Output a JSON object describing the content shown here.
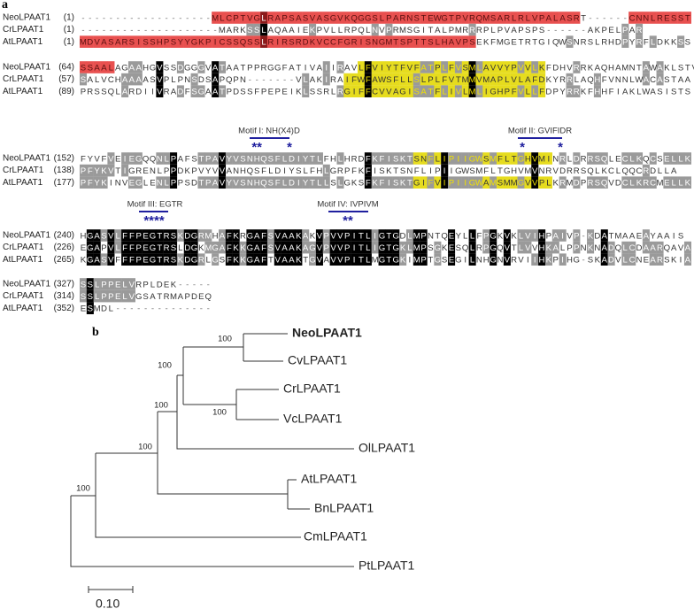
{
  "panel_a": {
    "label": "a",
    "blocks": [
      {
        "rows": [
          {
            "name": "NeoLPAAT1",
            "start": "(1)",
            "sequence": "-------------------MLCPTVGLRAPSASVASGVKQGGSLPARNSTEWGTPVRQMSARLRLVPALASRT------CNNLRESST"
          },
          {
            "name": "CrLPAAT1",
            "start": "(1)",
            "sequence": "--------------------MARKSSLAQAAIEKPVLLRPQLNVPRMSGITALPMRRRPLPVAPSPS------AKPELPAR"
          },
          {
            "name": "AtLPAAT1",
            "start": "(1)",
            "sequence": "MDVASARSISSHPSYYGKPICSSQSSLRIRSRDKVCCFGRISNGMTSPTTSLHAVPSEKFMGETRTGIQWSNRSLRHDPYRFLDKKSS"
          }
        ]
      },
      {
        "rows": [
          {
            "name": "NeoLPAAT1",
            "start": "(64)",
            "sequence": "SSAALAGAAHGVSSDGGGVATAATPPRGGFATIVAIIRAVLFVIYTFVFATPLFVSMLAVVYPVVLKFDHVRRKAQHAMNTAWAKLSTV"
          },
          {
            "name": "CrLPAAT1",
            "start": "(57)",
            "sequence": "SALVCHAAAASVPLPNSDSAPQPN-------VLAKIRAIFWFAWSFLLSLPLFVTMMVMAPLVLAFDKYRRLAQHFVNNLWACASTAA"
          },
          {
            "name": "AtLPAAT1",
            "start": "(89)",
            "sequence": "PRSSQLARDIIVRADFSGAATPDSSFPEPEIKLSSRLRGIFFCVVAGISATFLIVLMLIGHPFVLLFDPYRRKFHHFIAKLWASISTS"
          }
        ]
      },
      {
        "rows": [
          {
            "name": "NeoLPAAT1",
            "start": "(152)",
            "sequence": "FYVFVEIEGQQNLPAFSTPAVYVSNHQSFLDIYTLFHLHRDFKFISKTSNFLIPIIGWSMFLTGHVMINRLDRRSQLECLKQCSELLK"
          },
          {
            "name": "CrLPAAT1",
            "start": "(138)",
            "sequence": "PFYKVTIGRENLPPDKPVYVVANHQSFLDIYSLFHLGRPFKFISKTSNFLIPIIGWSMFLTGHVMVNRVDRRSQLKCLQQCRDLLA"
          },
          {
            "name": "AtLPAAT1",
            "start": "(177)",
            "sequence": "PFYKINVEGLENLPPSDTPAVYVSNHQSFLDIYTLLSLGKSFKFISKTGIFVIPIIGWAMSMMGVVPLKRMDPRSQVDCLKRCMELLK"
          }
        ]
      },
      {
        "rows": [
          {
            "name": "NeoLPAAT1",
            "start": "(240)",
            "sequence": "HGASVLFFPEGTRSKDGRMHAFKRGAFSVAAKAKVPVVPITLIGTGDLMPNTQEYLLFPGKVKLVIHPAIVP-KDATMAAEAYAAIS"
          },
          {
            "name": "CrLPAAT1",
            "start": "(226)",
            "sequence": "EGAPVLFFPEGTRSLDGKMGAFKKGAFSVAAKAGVPVVPITLIGTGKLMPSGKESQLRPGQVTLVVHKALPPNKNADQLCDAARQAVA"
          },
          {
            "name": "AtLPAAT1",
            "start": "(265)",
            "sequence": "KGASVFFFPEGTRSKDGRLGSFKKGAFTVAAKTGVAVVPITLMGTGKIMPTGSEGILNHGNVRVIIHKPIHG-SKADVLCNEARSKIA"
          }
        ]
      },
      {
        "rows": [
          {
            "name": "NeoLPAAT1",
            "start": "(327)",
            "sequence": "SSLPPELVRPLDEK-----"
          },
          {
            "name": "CrLPAAT1",
            "start": "(314)",
            "sequence": "SSLPPELVGSATRMAPDEQ"
          },
          {
            "name": "AtLPAAT1",
            "start": "(352)",
            "sequence": "ESMDL--------------"
          }
        ]
      }
    ],
    "motifs": [
      {
        "label": "Motif I: NH(X4)D",
        "stars": [
          "**",
          "*"
        ]
      },
      {
        "label": "Motif II: GVIFIDR",
        "stars": [
          "*",
          "*"
        ]
      },
      {
        "label": "Motif III: EGTR",
        "stars": [
          "****"
        ]
      },
      {
        "label": "Motif IV: IVPIVM",
        "stars": [
          "**"
        ]
      }
    ]
  },
  "panel_b": {
    "label": "b",
    "taxa": [
      "NeoLPAAT1",
      "CvLPAAT1",
      "CrLPAAT1",
      "VcLPAAT1",
      "OlLPAAT1",
      "AtLPAAT1",
      "BnLPAAT1",
      "CmLPAAT1",
      "PtLPAAT1"
    ],
    "bootstrap": [
      100,
      100,
      100,
      100,
      100,
      100
    ],
    "scale": "0.10"
  }
}
